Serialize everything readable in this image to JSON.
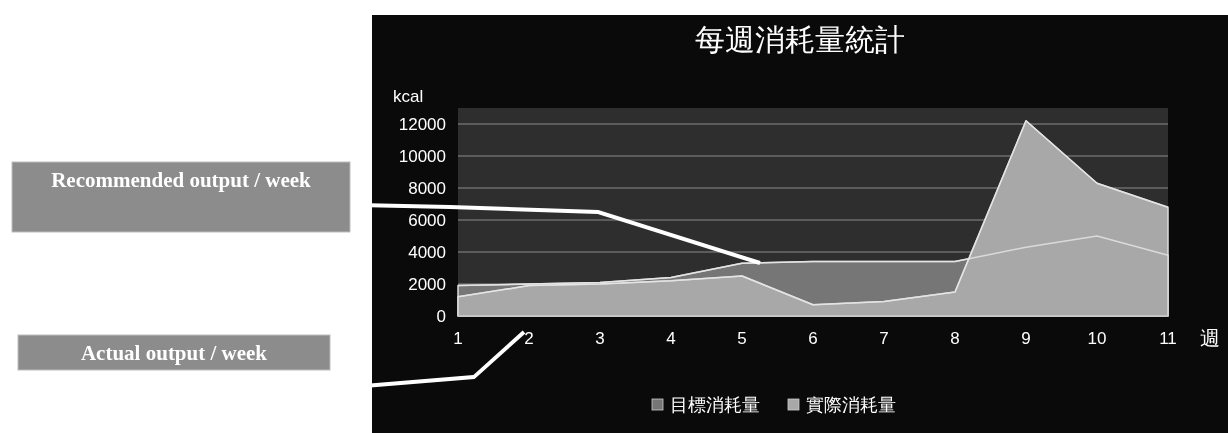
{
  "chart_data": {
    "type": "area",
    "title": "每週消耗量統計",
    "ylabel": "kcal",
    "xlabel": "週",
    "categories": [
      "1",
      "2",
      "3",
      "4",
      "5",
      "6",
      "7",
      "8",
      "9",
      "10",
      "11"
    ],
    "series": [
      {
        "name": "目標消耗量",
        "color": "#767676",
        "values": [
          1900,
          2000,
          2100,
          2400,
          3300,
          3400,
          3400,
          3400,
          4300,
          5000,
          3800
        ]
      },
      {
        "name": "實際消耗量",
        "color": "#a8a8a8",
        "values": [
          1200,
          1900,
          2000,
          2200,
          2500,
          700,
          900,
          1500,
          12200,
          8300,
          6800
        ]
      }
    ],
    "ylim": [
      0,
      13000
    ],
    "yticks": [
      0,
      2000,
      4000,
      6000,
      8000,
      10000,
      12000
    ],
    "grid": "y",
    "legend": "bottom",
    "annotations": [
      "Recommended output / week",
      "Actual output / week"
    ]
  }
}
